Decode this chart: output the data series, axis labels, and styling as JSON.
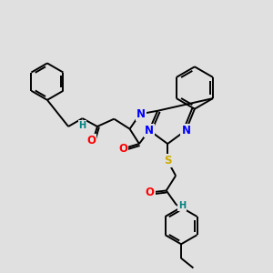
{
  "bg_color": "#e0e0e0",
  "bond_color": "#000000",
  "bond_width": 1.4,
  "atom_colors": {
    "N": "#0000ff",
    "O": "#ff0000",
    "S": "#ccaa00",
    "H": "#008080",
    "C": "#000000"
  },
  "font_size_atom": 8.5,
  "font_size_h": 7.0
}
